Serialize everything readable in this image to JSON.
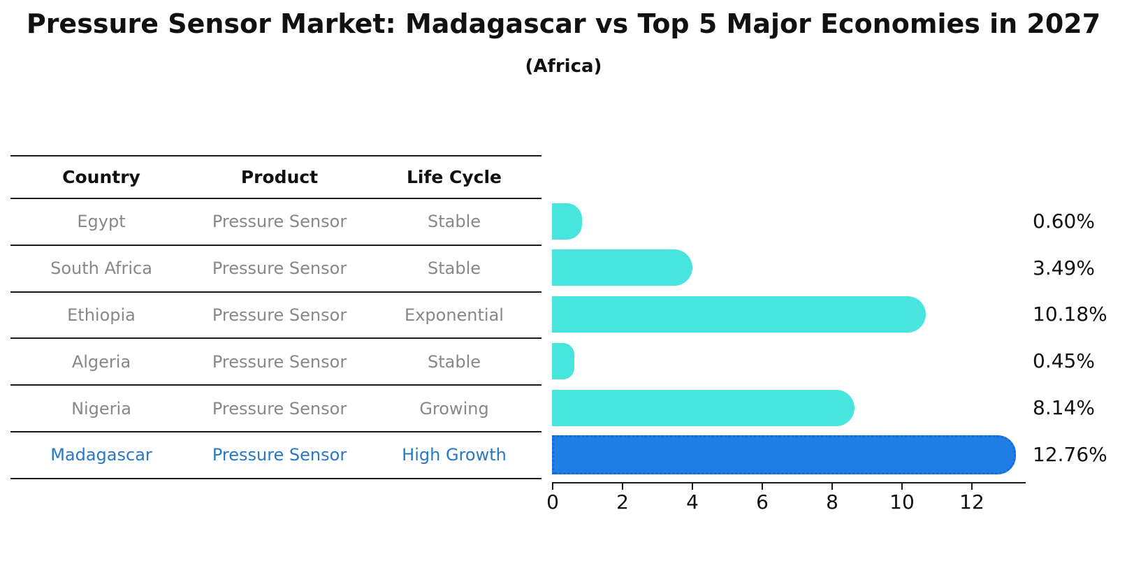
{
  "header": {
    "title": "Pressure Sensor Market: Madagascar vs Top 5 Major Economies in 2027",
    "subtitle": "(Africa)"
  },
  "table": {
    "columns": [
      "Country",
      "Product",
      "Life Cycle"
    ]
  },
  "chart_data": {
    "type": "bar",
    "orientation": "horizontal",
    "title": "Pressure Sensor Market: Madagascar vs Top 5 Major Economies in 2027",
    "subtitle": "(Africa)",
    "categories": [
      "Egypt",
      "South Africa",
      "Ethiopia",
      "Algeria",
      "Nigeria",
      "Madagascar"
    ],
    "values": [
      0.6,
      3.49,
      10.18,
      0.45,
      8.14,
      12.76
    ],
    "rows": [
      {
        "country": "Egypt",
        "product": "Pressure Sensor",
        "life_cycle": "Stable",
        "value": 0.6,
        "label": "0.60%",
        "highlighted": false
      },
      {
        "country": "South Africa",
        "product": "Pressure Sensor",
        "life_cycle": "Stable",
        "value": 3.49,
        "label": "3.49%",
        "highlighted": false
      },
      {
        "country": "Ethiopia",
        "product": "Pressure Sensor",
        "life_cycle": "Exponential",
        "value": 10.18,
        "label": "10.18%",
        "highlighted": false
      },
      {
        "country": "Algeria",
        "product": "Pressure Sensor",
        "life_cycle": "Stable",
        "value": 0.45,
        "label": "0.45%",
        "highlighted": false
      },
      {
        "country": "Nigeria",
        "product": "Pressure Sensor",
        "life_cycle": "Growing",
        "value": 8.14,
        "label": "8.14%",
        "highlighted": false
      },
      {
        "country": "Madagascar",
        "product": "Pressure Sensor",
        "life_cycle": "High Growth",
        "value": 12.76,
        "label": "12.76%",
        "highlighted": true
      }
    ],
    "x_ticks": [
      0,
      2,
      4,
      6,
      8,
      10,
      12
    ],
    "xlim": [
      0,
      13.56
    ],
    "grid": false,
    "legend": false,
    "colors": {
      "bar": "#48E5DE",
      "highlight_bar": "#1E7EE6",
      "highlight_border": "#1868D8",
      "highlight_text": "#2878C8",
      "row_text": "#888888",
      "axis": "#1a1a1a",
      "value_text": "#111111"
    }
  }
}
